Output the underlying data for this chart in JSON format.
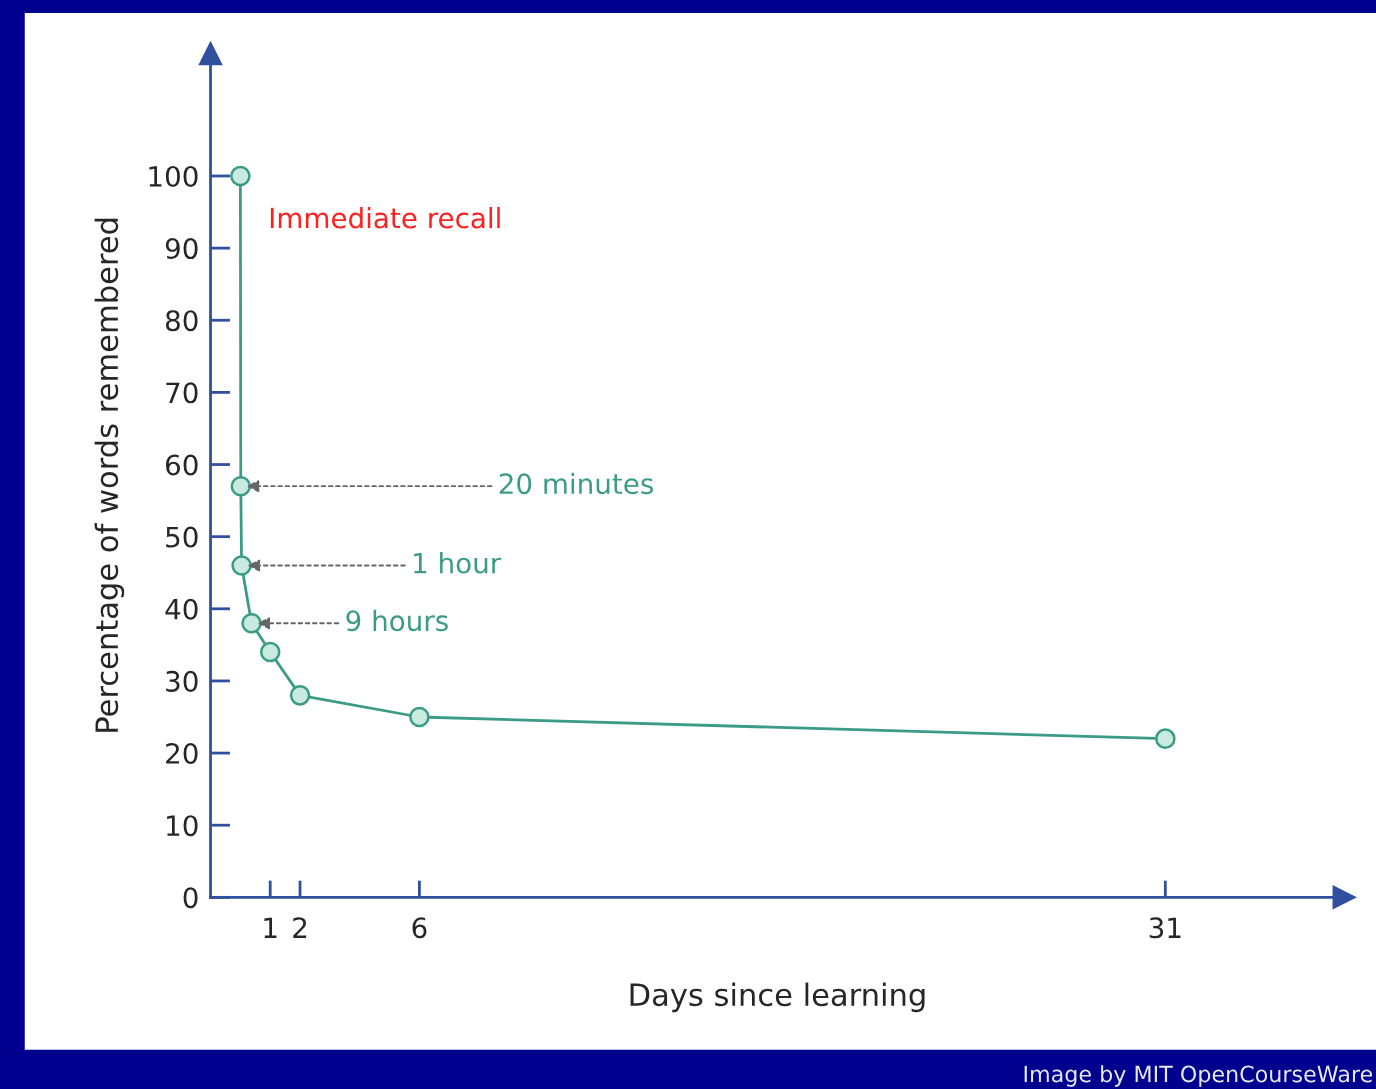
{
  "chart_data": {
    "type": "line",
    "xlabel": "Days since learning",
    "ylabel": "Percentage of words remembered",
    "x": [
      0,
      0.0139,
      0.0417,
      0.375,
      1,
      2,
      6,
      31
    ],
    "series": [
      {
        "color": "#3a9c86",
        "values": [
          100,
          57,
          46,
          38,
          34,
          28,
          25,
          22
        ]
      }
    ],
    "marker": "circle",
    "line_style": "solid",
    "grid": false,
    "legend": false,
    "xlim": [
      -1,
      37
    ],
    "xticks": [
      1,
      2,
      6,
      31
    ],
    "ylim": [
      0,
      117
    ],
    "yticks": [
      0,
      10,
      20,
      30,
      40,
      50,
      60,
      70,
      80,
      90,
      100
    ],
    "annotations": [
      {
        "text": "Immediate recall",
        "x": 0,
        "y": 100
      },
      {
        "text": "20 minutes",
        "x": 0.0139,
        "y": 57
      },
      {
        "text": "1 hour",
        "x": 0.0417,
        "y": 46
      },
      {
        "text": "9 hours",
        "x": 0.375,
        "y": 38
      },
      "Image by MIT OpenCourseWare"
    ]
  }
}
